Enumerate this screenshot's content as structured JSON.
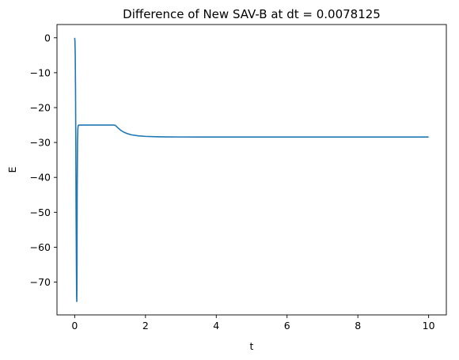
{
  "chart_data": {
    "type": "line",
    "title": "Difference of New SAV-B at dt = 0.0078125",
    "xlabel": "t",
    "ylabel": "E",
    "xlim": [
      -0.5,
      10.5
    ],
    "ylim": [
      -79.4,
      3.8
    ],
    "xticks": [
      0,
      2,
      4,
      6,
      8,
      10
    ],
    "yticks": [
      0,
      -10,
      -20,
      -30,
      -40,
      -50,
      -60,
      -70
    ],
    "grid": false,
    "legend": "none",
    "series": [
      {
        "color": "#1f77b4",
        "x": [
          0,
          0.008,
          0.016,
          0.024,
          0.032,
          0.04,
          0.05,
          0.055,
          0.06,
          0.065,
          0.07,
          0.08,
          0.09,
          0.1,
          0.12,
          0.15,
          0.2,
          0.4,
          0.8,
          1.1,
          1.15,
          1.2,
          1.3,
          1.4,
          1.5,
          1.6,
          1.8,
          2.0,
          2.3,
          2.6,
          3.0,
          3.5,
          4.0,
          5.0,
          6.0,
          8.0,
          10.0
        ],
        "y": [
          0,
          -1,
          -5,
          -15,
          -30,
          -50,
          -67,
          -74,
          -75.7,
          -68,
          -45,
          -30,
          -26,
          -25.2,
          -25,
          -25,
          -25,
          -25,
          -25,
          -25,
          -25.1,
          -25.6,
          -26.5,
          -27.1,
          -27.5,
          -27.8,
          -28.1,
          -28.25,
          -28.35,
          -28.4,
          -28.42,
          -28.43,
          -28.43,
          -28.43,
          -28.43,
          -28.43,
          -28.43
        ]
      }
    ]
  }
}
